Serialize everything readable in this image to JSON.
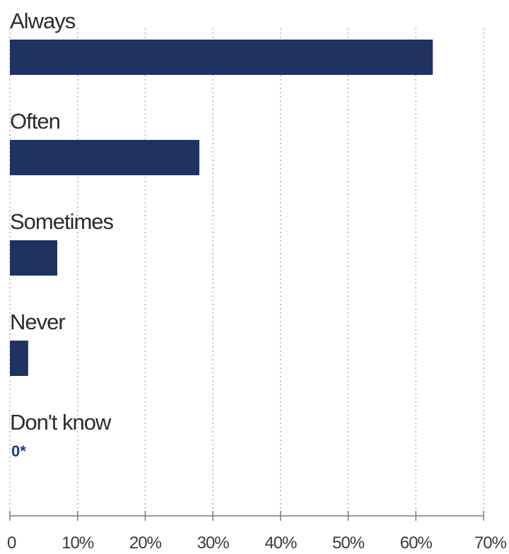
{
  "chart_data": {
    "type": "bar",
    "orientation": "horizontal",
    "categories": [
      "Always",
      "Often",
      "Sometimes",
      "Never",
      "Don't know"
    ],
    "values": [
      62.5,
      28,
      7,
      2.7,
      0
    ],
    "value_labels": [
      "",
      "",
      "",
      "",
      "0*"
    ],
    "xlim": [
      0,
      70
    ],
    "xticks": [
      "0",
      "10%",
      "20%",
      "30%",
      "40%",
      "50%",
      "60%",
      "70%"
    ],
    "title": "",
    "xlabel": "",
    "ylabel": "",
    "grid": "vertical dotted",
    "legend": "none",
    "bar_color": "#1f3262",
    "label_color": "#1d3a8a"
  }
}
